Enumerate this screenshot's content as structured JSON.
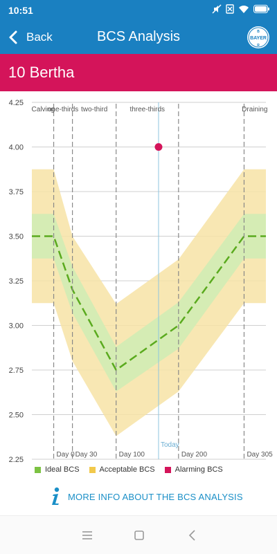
{
  "status": {
    "time": "10:51"
  },
  "header": {
    "back_label": "Back",
    "title": "BCS Analysis",
    "logo_text": "BAYER"
  },
  "animal": {
    "name": "10 Bertha"
  },
  "colors": {
    "blue": "#1a80c1",
    "magenta": "#d4145a",
    "ideal": "#7cc242",
    "acceptable": "#f2c94c",
    "alarming": "#d4145a"
  },
  "chart_data": {
    "type": "line",
    "ylim": [
      2.25,
      4.25
    ],
    "y_ticks": [
      "4.25",
      "4.00",
      "3.75",
      "3.50",
      "3.25",
      "3.00",
      "2.75",
      "2.50",
      "2.25"
    ],
    "x": [
      -35,
      0,
      30,
      100,
      200,
      305,
      340
    ],
    "x_ticks": [
      {
        "x": 0,
        "label": "Day 0"
      },
      {
        "x": 30,
        "label": "Day 30"
      },
      {
        "x": 100,
        "label": "Day 100"
      },
      {
        "x": 200,
        "label": "Day 200"
      },
      {
        "x": 305,
        "label": "Day 305"
      }
    ],
    "phases": [
      {
        "label": "Calving",
        "x": -17
      },
      {
        "label": "one-thirds",
        "x": 15
      },
      {
        "label": "two-third",
        "x": 65
      },
      {
        "label": "three-thirds",
        "x": 150
      },
      {
        "label": "Draining",
        "x": 322
      }
    ],
    "series": [
      {
        "name": "Ideal BCS",
        "values": [
          3.5,
          3.5,
          3.2,
          2.75,
          3.0,
          3.5,
          3.5
        ]
      },
      {
        "name": "Acceptable BCS"
      },
      {
        "name": "Alarming BCS",
        "points": [
          {
            "x": 168,
            "y": 4.0
          }
        ]
      }
    ],
    "ideal_band": {
      "upper": [
        3.625,
        3.625,
        3.33,
        2.88,
        3.13,
        3.625,
        3.625
      ],
      "lower": [
        3.375,
        3.375,
        3.07,
        2.63,
        2.87,
        3.375,
        3.375
      ]
    },
    "acceptable_band": {
      "upper": [
        3.875,
        3.875,
        3.5,
        3.12,
        3.37,
        3.875,
        3.875
      ],
      "lower": [
        3.125,
        3.125,
        2.8,
        2.38,
        2.63,
        3.125,
        3.125
      ]
    },
    "today": {
      "label": "Today",
      "x": 168
    },
    "grid": true
  },
  "more_info": {
    "label": "MORE INFO ABOUT THE BCS ANALYSIS"
  }
}
